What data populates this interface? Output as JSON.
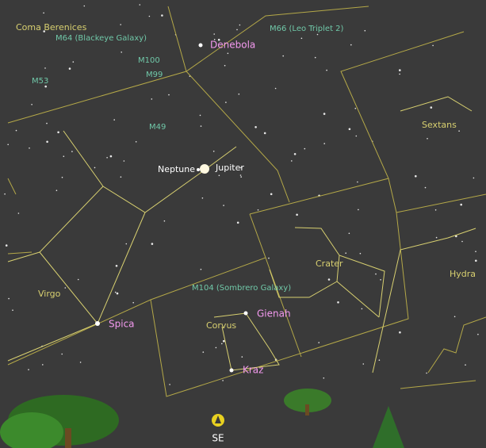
{
  "constellations": [
    "Coma Berenices",
    "Sextans",
    "Crater",
    "Hydra",
    "Virgo",
    "Corvus"
  ],
  "deep_sky": [
    "M64 (Blackeye Galaxy)",
    "M100",
    "M99",
    "M53",
    "M49",
    "M66 (Leo Triplet 2)",
    "M104 (Sombrero Galaxy)"
  ],
  "stars": [
    "Denebola",
    "Spica",
    "Gienah",
    "Kraz"
  ],
  "planets": [
    "Neptune",
    "Jupiter"
  ],
  "compass": "SE"
}
